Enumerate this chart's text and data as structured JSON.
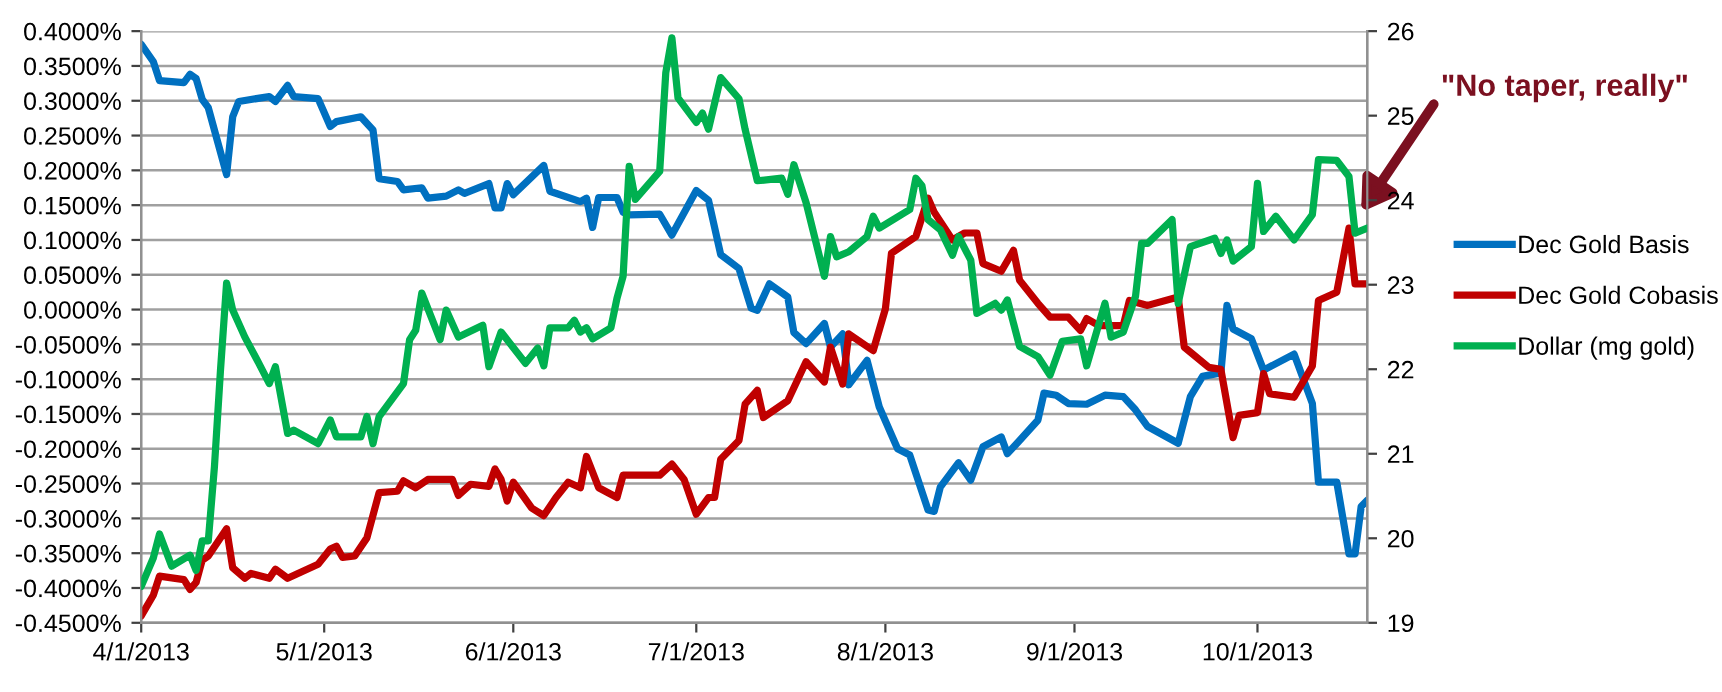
{
  "chart_data": {
    "type": "line",
    "legend": "right",
    "grid": "y",
    "line_style": "solid",
    "marker": "none",
    "xlim": [
      "2013-04-01",
      "2013-10-19"
    ],
    "xticks": [
      {
        "value": "2013-04-01",
        "label": "4/1/2013"
      },
      {
        "value": "2013-05-01",
        "label": "5/1/2013"
      },
      {
        "value": "2013-06-01",
        "label": "6/1/2013"
      },
      {
        "value": "2013-07-01",
        "label": "7/1/2013"
      },
      {
        "value": "2013-08-01",
        "label": "8/1/2013"
      },
      {
        "value": "2013-09-01",
        "label": "9/1/2013"
      },
      {
        "value": "2013-10-01",
        "label": "10/1/2013"
      }
    ],
    "ylim": [
      -0.45,
      0.4
    ],
    "yticks": [
      {
        "value": -0.45,
        "label": "-0.4500%"
      },
      {
        "value": -0.4,
        "label": "-0.4000%"
      },
      {
        "value": -0.35,
        "label": "-0.3500%"
      },
      {
        "value": -0.3,
        "label": "-0.3000%"
      },
      {
        "value": -0.25,
        "label": "-0.2500%"
      },
      {
        "value": -0.2,
        "label": "-0.2000%"
      },
      {
        "value": -0.15,
        "label": "-0.1500%"
      },
      {
        "value": -0.1,
        "label": "-0.1000%"
      },
      {
        "value": -0.05,
        "label": "-0.0500%"
      },
      {
        "value": 0,
        "label": "0.0000%"
      },
      {
        "value": 0.05,
        "label": "0.0500%"
      },
      {
        "value": 0.1,
        "label": "0.1000%"
      },
      {
        "value": 0.15,
        "label": "0.1500%"
      },
      {
        "value": 0.2,
        "label": "0.2000%"
      },
      {
        "value": 0.25,
        "label": "0.2500%"
      },
      {
        "value": 0.3,
        "label": "0.3000%"
      },
      {
        "value": 0.35,
        "label": "0.3500%"
      },
      {
        "value": 0.4,
        "label": "0.4000%"
      }
    ],
    "y2lim": [
      19,
      26
    ],
    "y2ticks": [
      19,
      20,
      21,
      22,
      23,
      24,
      25,
      26
    ],
    "annotations": [
      {
        "text": "\"No taper, really\"",
        "x": "2013-10-18",
        "y": 0.14
      }
    ],
    "series": [
      {
        "name": "Dec Gold Basis",
        "color": "#0070c0",
        "x": [
          "2013-04-01",
          "2013-04-03",
          "2013-04-04",
          "2013-04-08",
          "2013-04-09",
          "2013-04-10",
          "2013-04-11",
          "2013-04-12",
          "2013-04-15",
          "2013-04-16",
          "2013-04-17",
          "2013-04-22",
          "2013-04-23",
          "2013-04-25",
          "2013-04-26",
          "2013-04-30",
          "2013-05-02",
          "2013-05-03",
          "2013-05-07",
          "2013-05-09",
          "2013-05-10",
          "2013-05-13",
          "2013-05-14",
          "2013-05-17",
          "2013-05-18",
          "2013-05-21",
          "2013-05-23",
          "2013-05-24",
          "2013-05-28",
          "2013-05-29",
          "2013-05-30",
          "2013-05-31",
          "2013-06-01",
          "2013-06-06",
          "2013-06-07",
          "2013-06-12",
          "2013-06-13",
          "2013-06-14",
          "2013-06-15",
          "2013-06-18",
          "2013-06-19",
          "2013-06-20",
          "2013-06-25",
          "2013-06-27",
          "2013-07-01",
          "2013-07-03",
          "2013-07-05",
          "2013-07-08",
          "2013-07-10",
          "2013-07-11",
          "2013-07-13",
          "2013-07-16",
          "2013-07-17",
          "2013-07-19",
          "2013-07-22",
          "2013-07-23",
          "2013-07-25",
          "2013-07-26",
          "2013-07-29",
          "2013-07-31",
          "2013-08-03",
          "2013-08-05",
          "2013-08-08",
          "2013-08-09",
          "2013-08-10",
          "2013-08-13",
          "2013-08-15",
          "2013-08-17",
          "2013-08-20",
          "2013-08-21",
          "2013-08-23",
          "2013-08-26",
          "2013-08-27",
          "2013-08-29",
          "2013-08-31",
          "2013-09-03",
          "2013-09-06",
          "2013-09-09",
          "2013-09-11",
          "2013-09-13",
          "2013-09-18",
          "2013-09-20",
          "2013-09-22",
          "2013-09-25",
          "2013-09-26",
          "2013-09-27",
          "2013-09-30",
          "2013-10-02",
          "2013-10-07",
          "2013-10-10",
          "2013-10-11",
          "2013-10-14",
          "2013-10-16",
          "2013-10-17",
          "2013-10-18",
          "2013-10-19"
        ],
        "values": [
          0.381,
          0.356,
          0.329,
          0.326,
          0.338,
          0.332,
          0.302,
          0.29,
          0.194,
          0.277,
          0.299,
          0.306,
          0.299,
          0.322,
          0.306,
          0.303,
          0.263,
          0.27,
          0.277,
          0.258,
          0.188,
          0.184,
          0.172,
          0.175,
          0.16,
          0.163,
          0.172,
          0.167,
          0.181,
          0.146,
          0.146,
          0.181,
          0.165,
          0.207,
          0.17,
          0.155,
          0.16,
          0.118,
          0.161,
          0.161,
          0.14,
          0.136,
          0.137,
          0.107,
          0.171,
          0.157,
          0.079,
          0.059,
          0.002,
          -0.001,
          0.037,
          0.018,
          -0.033,
          -0.049,
          -0.02,
          -0.054,
          -0.035,
          -0.108,
          -0.073,
          -0.14,
          -0.2,
          -0.209,
          -0.288,
          -0.29,
          -0.255,
          -0.22,
          -0.245,
          -0.197,
          -0.183,
          -0.207,
          -0.188,
          -0.159,
          -0.12,
          -0.123,
          -0.135,
          -0.136,
          -0.123,
          -0.125,
          -0.144,
          -0.168,
          -0.192,
          -0.125,
          -0.096,
          -0.091,
          0.006,
          -0.028,
          -0.042,
          -0.087,
          -0.064,
          -0.135,
          -0.248,
          -0.248,
          -0.351,
          -0.351,
          -0.283,
          -0.274
        ]
      },
      {
        "name": "Dec Gold Cobasis",
        "color": "#c00000",
        "x": [
          "2013-04-01",
          "2013-04-03",
          "2013-04-04",
          "2013-04-08",
          "2013-04-09",
          "2013-04-10",
          "2013-04-11",
          "2013-04-12",
          "2013-04-15",
          "2013-04-16",
          "2013-04-18",
          "2013-04-19",
          "2013-04-22",
          "2013-04-23",
          "2013-04-25",
          "2013-04-30",
          "2013-05-02",
          "2013-05-03",
          "2013-05-04",
          "2013-05-06",
          "2013-05-08",
          "2013-05-10",
          "2013-05-13",
          "2013-05-14",
          "2013-05-16",
          "2013-05-18",
          "2013-05-22",
          "2013-05-23",
          "2013-05-25",
          "2013-05-28",
          "2013-05-29",
          "2013-05-30",
          "2013-05-31",
          "2013-06-01",
          "2013-06-04",
          "2013-06-06",
          "2013-06-08",
          "2013-06-10",
          "2013-06-12",
          "2013-06-13",
          "2013-06-15",
          "2013-06-18",
          "2013-06-19",
          "2013-06-21",
          "2013-06-25",
          "2013-06-27",
          "2013-06-29",
          "2013-07-01",
          "2013-07-03",
          "2013-07-04",
          "2013-07-05",
          "2013-07-08",
          "2013-07-09",
          "2013-07-11",
          "2013-07-12",
          "2013-07-16",
          "2013-07-19",
          "2013-07-22",
          "2013-07-23",
          "2013-07-25",
          "2013-07-26",
          "2013-07-30",
          "2013-08-01",
          "2013-08-02",
          "2013-08-06",
          "2013-08-08",
          "2013-08-09",
          "2013-08-12",
          "2013-08-14",
          "2013-08-16",
          "2013-08-17",
          "2013-08-20",
          "2013-08-22",
          "2013-08-23",
          "2013-08-26",
          "2013-08-28",
          "2013-08-31",
          "2013-09-02",
          "2013-09-03",
          "2013-09-05",
          "2013-09-09",
          "2013-09-10",
          "2013-09-13",
          "2013-09-18",
          "2013-09-19",
          "2013-09-23",
          "2013-09-25",
          "2013-09-27",
          "2013-09-28",
          "2013-10-01",
          "2013-10-02",
          "2013-10-03",
          "2013-10-07",
          "2013-10-10",
          "2013-10-11",
          "2013-10-14",
          "2013-10-16",
          "2013-10-17",
          "2013-10-19"
        ],
        "values": [
          -0.44,
          -0.41,
          -0.383,
          -0.388,
          -0.402,
          -0.392,
          -0.36,
          -0.354,
          -0.315,
          -0.371,
          -0.386,
          -0.379,
          -0.386,
          -0.373,
          -0.386,
          -0.366,
          -0.344,
          -0.34,
          -0.356,
          -0.354,
          -0.328,
          -0.263,
          -0.261,
          -0.246,
          -0.256,
          -0.244,
          -0.244,
          -0.267,
          -0.251,
          -0.254,
          -0.229,
          -0.244,
          -0.275,
          -0.248,
          -0.285,
          -0.296,
          -0.27,
          -0.248,
          -0.256,
          -0.211,
          -0.256,
          -0.27,
          -0.238,
          -0.238,
          -0.238,
          -0.222,
          -0.244,
          -0.294,
          -0.27,
          -0.27,
          -0.215,
          -0.188,
          -0.136,
          -0.116,
          -0.155,
          -0.131,
          -0.075,
          -0.104,
          -0.054,
          -0.107,
          -0.035,
          -0.059,
          0.001,
          0.081,
          0.105,
          0.16,
          0.14,
          0.1,
          0.11,
          0.11,
          0.066,
          0.055,
          0.085,
          0.042,
          0.009,
          -0.011,
          -0.011,
          -0.03,
          -0.013,
          -0.023,
          -0.023,
          0.013,
          0.006,
          0.018,
          -0.054,
          -0.083,
          -0.086,
          -0.184,
          -0.152,
          -0.148,
          -0.092,
          -0.121,
          -0.126,
          -0.081,
          0.013,
          0.025,
          0.117,
          0.037,
          0.037
        ]
      },
      {
        "name": "Dollar (mg gold)",
        "color": "#00b050",
        "axis": "y2",
        "x": [
          "2013-04-01",
          "2013-04-03",
          "2013-04-04",
          "2013-04-06",
          "2013-04-09",
          "2013-04-10",
          "2013-04-11",
          "2013-04-12",
          "2013-04-13",
          "2013-04-14",
          "2013-04-15",
          "2013-04-16",
          "2013-04-18",
          "2013-04-20",
          "2013-04-22",
          "2013-04-23",
          "2013-04-25",
          "2013-04-26",
          "2013-04-30",
          "2013-05-02",
          "2013-05-03",
          "2013-05-07",
          "2013-05-08",
          "2013-05-09",
          "2013-05-10",
          "2013-05-14",
          "2013-05-15",
          "2013-05-16",
          "2013-05-17",
          "2013-05-20",
          "2013-05-21",
          "2013-05-23",
          "2013-05-27",
          "2013-05-28",
          "2013-05-30",
          "2013-06-03",
          "2013-06-05",
          "2013-06-06",
          "2013-06-07",
          "2013-06-10",
          "2013-06-11",
          "2013-06-12",
          "2013-06-13",
          "2013-06-14",
          "2013-06-17",
          "2013-06-18",
          "2013-06-19",
          "2013-06-20",
          "2013-06-21",
          "2013-06-25",
          "2013-06-26",
          "2013-06-27",
          "2013-06-28",
          "2013-07-01",
          "2013-07-02",
          "2013-07-03",
          "2013-07-05",
          "2013-07-08",
          "2013-07-09",
          "2013-07-11",
          "2013-07-15",
          "2013-07-16",
          "2013-07-17",
          "2013-07-19",
          "2013-07-22",
          "2013-07-23",
          "2013-07-24",
          "2013-07-26",
          "2013-07-29",
          "2013-07-30",
          "2013-07-31",
          "2013-08-05",
          "2013-08-06",
          "2013-08-07",
          "2013-08-08",
          "2013-08-10",
          "2013-08-12",
          "2013-08-13",
          "2013-08-15",
          "2013-08-16",
          "2013-08-19",
          "2013-08-20",
          "2013-08-21",
          "2013-08-23",
          "2013-08-26",
          "2013-08-28",
          "2013-08-30",
          "2013-09-02",
          "2013-09-03",
          "2013-09-06",
          "2013-09-07",
          "2013-09-09",
          "2013-09-11",
          "2013-09-12",
          "2013-09-13",
          "2013-09-17",
          "2013-09-18",
          "2013-09-20",
          "2013-09-24",
          "2013-09-25",
          "2013-09-26",
          "2013-09-27",
          "2013-09-30",
          "2013-10-01",
          "2013-10-02",
          "2013-10-04",
          "2013-10-07",
          "2013-10-10",
          "2013-10-11",
          "2013-10-14",
          "2013-10-16",
          "2013-10-17",
          "2013-10-19"
        ],
        "values": [
          19.43,
          19.77,
          20.05,
          19.67,
          19.8,
          19.62,
          19.97,
          19.97,
          20.84,
          21.99,
          23.02,
          22.7,
          22.38,
          22.11,
          21.83,
          22.03,
          21.24,
          21.28,
          21.12,
          21.4,
          21.2,
          21.2,
          21.44,
          21.12,
          21.44,
          21.83,
          22.35,
          22.46,
          22.9,
          22.35,
          22.7,
          22.38,
          22.52,
          22.03,
          22.44,
          22.07,
          22.25,
          22.04,
          22.49,
          22.49,
          22.58,
          22.44,
          22.49,
          22.36,
          22.49,
          22.84,
          23.1,
          24.4,
          24.01,
          24.34,
          25.51,
          25.92,
          25.21,
          24.92,
          25.03,
          24.84,
          25.45,
          25.2,
          24.84,
          24.23,
          24.26,
          24.07,
          24.42,
          23.97,
          23.1,
          23.57,
          23.33,
          23.39,
          23.57,
          23.81,
          23.67,
          23.89,
          24.26,
          24.17,
          23.77,
          23.65,
          23.35,
          23.57,
          23.29,
          22.66,
          22.78,
          22.7,
          22.82,
          22.27,
          22.15,
          21.93,
          22.33,
          22.36,
          22.04,
          22.78,
          22.38,
          22.44,
          22.86,
          23.49,
          23.49,
          23.77,
          22.78,
          23.45,
          23.55,
          23.37,
          23.53,
          23.28,
          23.45,
          24.2,
          23.63,
          23.81,
          23.53,
          23.83,
          24.48,
          24.47,
          24.28,
          23.61,
          23.67
        ]
      }
    ]
  }
}
